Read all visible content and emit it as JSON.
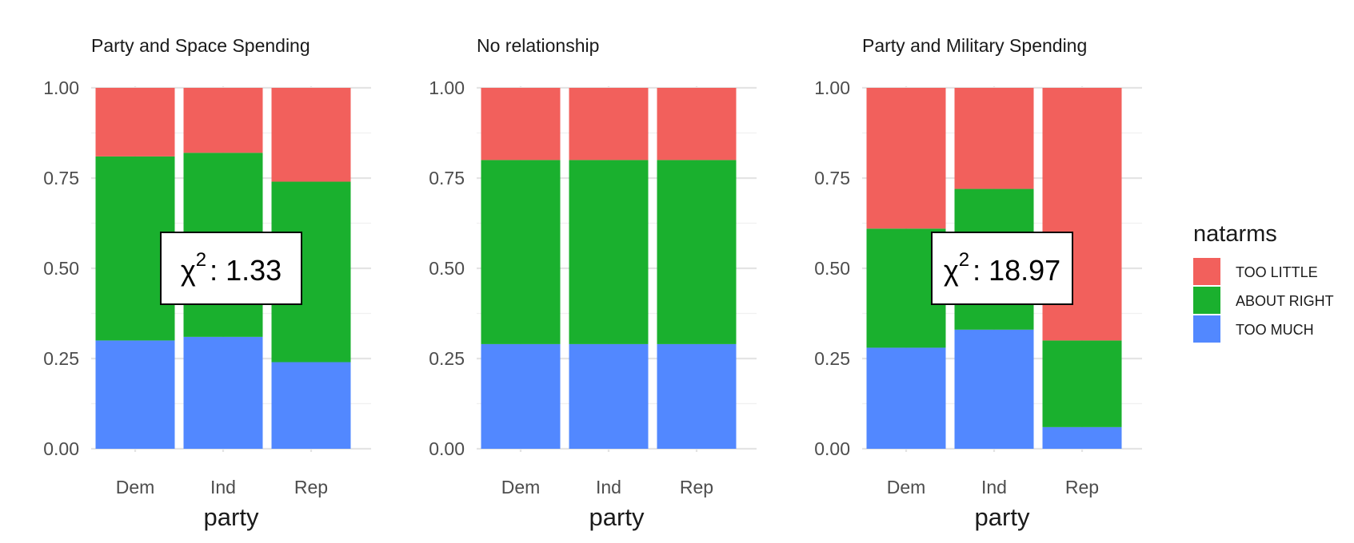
{
  "colors": {
    "too_little": "#F2605C",
    "about_right": "#1AB02E",
    "too_much": "#5288FF",
    "grid_major": "#E4E4E4",
    "grid_minor": "#F0F0F0",
    "text": "#4D4D4D",
    "title": "#1A1A1A"
  },
  "legend": {
    "title": "natarms",
    "items": [
      {
        "label": "TOO LITTLE",
        "color": "#F2605C"
      },
      {
        "label": "ABOUT RIGHT",
        "color": "#1AB02E"
      },
      {
        "label": "TOO MUCH",
        "color": "#5288FF"
      }
    ]
  },
  "chart_data": [
    {
      "type": "bar",
      "stacked": true,
      "title": "Party and Space Spending",
      "xlabel": "party",
      "ylabel": "",
      "ylim": [
        0,
        1
      ],
      "yticks": [
        "0.00",
        "0.25",
        "0.50",
        "0.75",
        "1.00"
      ],
      "categories": [
        "Dem",
        "Ind",
        "Rep"
      ],
      "series": [
        {
          "name": "TOO MUCH",
          "values": [
            0.3,
            0.31,
            0.24
          ]
        },
        {
          "name": "ABOUT RIGHT",
          "values": [
            0.51,
            0.51,
            0.5
          ]
        },
        {
          "name": "TOO LITTLE",
          "values": [
            0.19,
            0.18,
            0.26
          ]
        }
      ],
      "annotation": {
        "symbol": "χ",
        "superscript": "2",
        "text": ": 1.33"
      }
    },
    {
      "type": "bar",
      "stacked": true,
      "title": "No relationship",
      "xlabel": "party",
      "ylabel": "",
      "ylim": [
        0,
        1
      ],
      "yticks": [
        "0.00",
        "0.25",
        "0.50",
        "0.75",
        "1.00"
      ],
      "categories": [
        "Dem",
        "Ind",
        "Rep"
      ],
      "series": [
        {
          "name": "TOO MUCH",
          "values": [
            0.29,
            0.29,
            0.29
          ]
        },
        {
          "name": "ABOUT RIGHT",
          "values": [
            0.51,
            0.51,
            0.51
          ]
        },
        {
          "name": "TOO LITTLE",
          "values": [
            0.2,
            0.2,
            0.2
          ]
        }
      ],
      "annotation": null
    },
    {
      "type": "bar",
      "stacked": true,
      "title": "Party and Military Spending",
      "xlabel": "party",
      "ylabel": "",
      "ylim": [
        0,
        1
      ],
      "yticks": [
        "0.00",
        "0.25",
        "0.50",
        "0.75",
        "1.00"
      ],
      "categories": [
        "Dem",
        "Ind",
        "Rep"
      ],
      "series": [
        {
          "name": "TOO MUCH",
          "values": [
            0.28,
            0.33,
            0.06
          ]
        },
        {
          "name": "ABOUT RIGHT",
          "values": [
            0.33,
            0.39,
            0.24
          ]
        },
        {
          "name": "TOO LITTLE",
          "values": [
            0.39,
            0.28,
            0.7
          ]
        }
      ],
      "annotation": {
        "symbol": "χ",
        "superscript": "2",
        "text": ": 18.97"
      }
    }
  ]
}
